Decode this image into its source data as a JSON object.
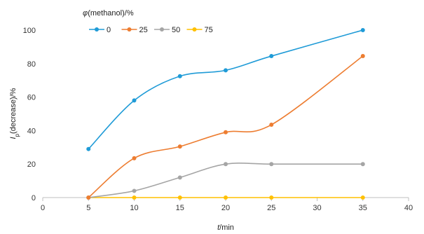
{
  "chart_data": {
    "type": "line",
    "smooth": true,
    "x": [
      5,
      10,
      15,
      20,
      25,
      35
    ],
    "series": [
      {
        "name": "0",
        "color": "#1f9bd7",
        "values": [
          29,
          58,
          72.5,
          76,
          84.5,
          100
        ]
      },
      {
        "name": "25",
        "color": "#ed7d31",
        "values": [
          0,
          23.5,
          30.5,
          39,
          43.5,
          84.5
        ]
      },
      {
        "name": "50",
        "color": "#a5a5a5",
        "values": [
          0,
          4,
          12,
          20,
          20,
          20
        ]
      },
      {
        "name": "75",
        "color": "#ffc000",
        "values": [
          0,
          0,
          0,
          0,
          0,
          0
        ]
      }
    ],
    "legend_title_italic": "φ",
    "legend_title_rest": "(methanol)/%",
    "xlabel_italic": "t",
    "xlabel_rest": "/min",
    "ylabel_italic": "I",
    "ylabel_sub": "p",
    "ylabel_rest": "(decrease)/%",
    "xlim": [
      0,
      40
    ],
    "ylim": [
      0,
      100
    ],
    "xticks": [
      0,
      5,
      10,
      15,
      20,
      25,
      30,
      35,
      40
    ],
    "yticks": [
      0,
      20,
      40,
      60,
      80,
      100
    ],
    "grid": false,
    "legend_position": "top-left",
    "axis_color": "#bfbfbf"
  }
}
